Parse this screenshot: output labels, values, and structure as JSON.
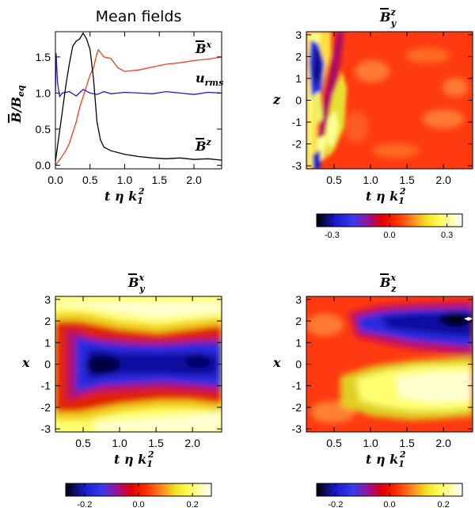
{
  "chart_data": [
    {
      "type": "line",
      "title": "Mean fields",
      "xlabel": "t η k₁²",
      "ylabel": "B̄/B_eq",
      "xlim": [
        0.0,
        2.4
      ],
      "ylim": [
        -0.05,
        1.85
      ],
      "x_ticks": [
        "0.0",
        "0.5",
        "1.0",
        "1.5",
        "2.0"
      ],
      "y_ticks": [
        "0.0",
        "0.5",
        "1.0",
        "1.5"
      ],
      "series": [
        {
          "name": "B̄^x",
          "color": "#e8401e",
          "x": [
            0.0,
            0.08,
            0.15,
            0.2,
            0.25,
            0.3,
            0.35,
            0.4,
            0.45,
            0.5,
            0.55,
            0.6,
            0.62,
            0.7,
            0.8,
            0.9,
            1.0,
            1.2,
            1.4,
            1.6,
            1.8,
            2.0,
            2.2,
            2.4
          ],
          "y": [
            0.0,
            0.1,
            0.2,
            0.3,
            0.45,
            0.6,
            0.8,
            0.95,
            1.1,
            1.25,
            1.35,
            1.55,
            1.6,
            1.5,
            1.48,
            1.35,
            1.3,
            1.32,
            1.36,
            1.4,
            1.42,
            1.45,
            1.47,
            1.5
          ]
        },
        {
          "name": "u_rms",
          "color": "#2a18c8",
          "x": [
            0.0,
            0.01,
            0.03,
            0.06,
            0.1,
            0.2,
            0.3,
            0.4,
            0.5,
            0.6,
            0.7,
            0.8,
            1.0,
            1.2,
            1.4,
            1.6,
            1.8,
            2.0,
            2.2,
            2.4
          ],
          "y": [
            1.0,
            1.55,
            1.15,
            0.95,
            1.0,
            1.02,
            0.96,
            1.05,
            1.0,
            0.98,
            1.02,
            0.99,
            1.01,
            1.0,
            0.99,
            1.02,
            1.0,
            0.98,
            1.01,
            1.0
          ]
        },
        {
          "name": "B̄^z",
          "color": "#000000",
          "x": [
            0.0,
            0.05,
            0.1,
            0.15,
            0.2,
            0.25,
            0.3,
            0.35,
            0.4,
            0.45,
            0.5,
            0.55,
            0.6,
            0.65,
            0.7,
            0.8,
            1.0,
            1.2,
            1.4,
            1.6,
            1.8,
            2.0,
            2.2,
            2.4
          ],
          "y": [
            0.05,
            0.4,
            0.75,
            1.1,
            1.4,
            1.65,
            1.72,
            1.75,
            1.83,
            1.75,
            1.6,
            1.2,
            0.6,
            0.35,
            0.25,
            0.2,
            0.15,
            0.12,
            0.1,
            0.09,
            0.1,
            0.08,
            0.09,
            0.07
          ]
        }
      ],
      "annotations": [
        "B̄^x",
        "u_rms",
        "B̄^z"
      ]
    },
    {
      "type": "heatmap",
      "title": "B̄^z_y",
      "xlabel": "t η k₁²",
      "ylabel": "z",
      "xlim": [
        0.12,
        2.4
      ],
      "ylim": [
        -3.14,
        3.14
      ],
      "x_ticks": [
        "0.5",
        "1.0",
        "1.5",
        "2.0"
      ],
      "y_ticks": [
        "-3",
        "-2",
        "-1",
        "0",
        "1",
        "2",
        "3"
      ],
      "colorbar_range": [
        -0.38,
        0.38
      ],
      "colorbar_ticks": [
        "-0.3",
        "0.0",
        "0.3"
      ]
    },
    {
      "type": "heatmap",
      "title": "B̄^x_y",
      "xlabel": "t η k₁²",
      "ylabel": "x",
      "xlim": [
        0.12,
        2.4
      ],
      "ylim": [
        -3.14,
        3.14
      ],
      "x_ticks": [
        "0.5",
        "1.0",
        "1.5",
        "2.0"
      ],
      "y_ticks": [
        "-3",
        "-2",
        "-1",
        "0",
        "1",
        "2",
        "3"
      ],
      "colorbar_range": [
        -0.27,
        0.27
      ],
      "colorbar_ticks": [
        "-0.2",
        "0.0",
        "0.2"
      ]
    },
    {
      "type": "heatmap",
      "title": "B̄^x_z",
      "xlabel": "t η k₁²",
      "ylabel": "x",
      "xlim": [
        0.12,
        2.4
      ],
      "ylim": [
        -3.14,
        3.14
      ],
      "x_ticks": [
        "0.5",
        "1.0",
        "1.5",
        "2.0"
      ],
      "y_ticks": [
        "-3",
        "-2",
        "-1",
        "0",
        "1",
        "2",
        "3"
      ],
      "colorbar_range": [
        -0.27,
        0.27
      ],
      "colorbar_ticks": [
        "-0.2",
        "0.0",
        "0.2"
      ]
    }
  ],
  "labels": {
    "title_line": "Mean fields",
    "bar_B": "B",
    "slash_Beq": "/B",
    "eq": "eq",
    "t_eta_k": "t η k",
    "sub1": "1",
    "sup2": "2",
    "u": "u",
    "rms": "rms",
    "sup_x": "x",
    "sup_z": "z",
    "sub_y": "y",
    "sub_z": "z"
  },
  "colors": {
    "bx": "#e8401e",
    "urms": "#2a18c8",
    "bz": "#000000"
  }
}
